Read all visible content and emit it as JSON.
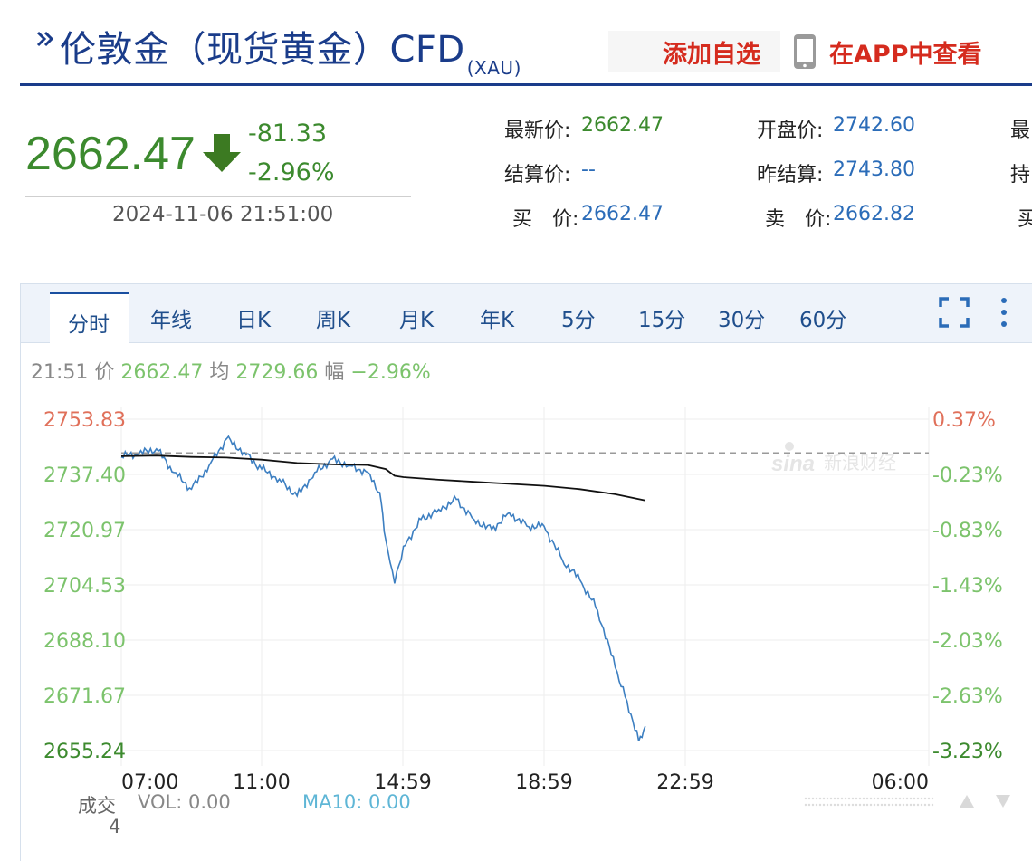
{
  "header": {
    "title": "伦敦金（现货黄金）CFD",
    "title_sub": "(XAU)",
    "add_fav": "添加自选",
    "app_link": "在APP中查看",
    "icon_title": "double-chevron-icon",
    "icon_phone": "phone-icon"
  },
  "quote": {
    "price": "2662.47",
    "change": "-81.33",
    "change_pct": "-2.96%",
    "datetime": "2024-11-06 21:51:00",
    "direction_icon": "down-arrow-icon",
    "fields": [
      {
        "label": "最新价:",
        "value": "2662.47",
        "color": "green"
      },
      {
        "label": "结算价:",
        "value": "--",
        "color": "blue"
      },
      {
        "label": "买　价:",
        "value": "2662.47",
        "color": "blue"
      },
      {
        "label": "开盘价:",
        "value": "2742.60",
        "color": "blue"
      },
      {
        "label": "昨结算:",
        "value": "2743.80",
        "color": "blue"
      },
      {
        "label": "卖　价:",
        "value": "2662.82",
        "color": "blue"
      },
      {
        "label": "最",
        "value": "",
        "color": "blue"
      },
      {
        "label": "持",
        "value": "",
        "color": "blue"
      },
      {
        "label": "买",
        "value": "",
        "color": "blue"
      }
    ]
  },
  "tabs": {
    "active": "分时",
    "items": [
      "年线",
      "日K",
      "周K",
      "月K",
      "年K",
      "5分",
      "15分",
      "30分",
      "60分"
    ],
    "fullscreen_icon": "fullscreen-icon",
    "more_icon": "more-vertical-icon"
  },
  "info": {
    "time": "21:51",
    "price_label": "价",
    "price": "2662.47",
    "avg_label": "均",
    "avg": "2729.66",
    "amp_label": "幅",
    "amp": "−2.96%"
  },
  "footer": {
    "volume_label": "成交",
    "vol": "VOL: 0.00",
    "ma10": "MA10: 0.00",
    "volume_axis": "4"
  },
  "colors": {
    "price_line": "#3d7fc1",
    "avg_line": "#111111",
    "up": "#e0705a",
    "down": "#7cc36c",
    "brand": "#1a3c8a",
    "alert": "#d52b1e"
  },
  "chart_data": {
    "type": "line",
    "x_ticks": [
      "07:00",
      "11:00",
      "14:59",
      "18:59",
      "22:59",
      "06:00"
    ],
    "y_ticks_left": [
      "2753.83",
      "2737.40",
      "2720.97",
      "2704.53",
      "2688.10",
      "2671.67",
      "2655.24"
    ],
    "y_ticks_right": [
      "0.37%",
      "-0.23%",
      "-0.83%",
      "-1.43%",
      "-2.03%",
      "-2.63%",
      "-3.23%"
    ],
    "ylim": [
      2655.24,
      2753.83
    ],
    "prev_settle": 2743.8,
    "grid": true,
    "series": [
      {
        "role": "price",
        "x": [
          "07:00",
          "07:30",
          "08:00",
          "08:30",
          "09:00",
          "09:30",
          "10:00",
          "10:30",
          "11:00",
          "11:30",
          "12:00",
          "12:30",
          "13:00",
          "13:30",
          "14:00",
          "14:20",
          "14:30",
          "14:45",
          "15:00",
          "15:30",
          "16:00",
          "16:30",
          "17:00",
          "17:30",
          "18:00",
          "18:30",
          "18:59",
          "19:30",
          "20:00",
          "20:30",
          "21:00",
          "21:20",
          "21:40",
          "21:51"
        ],
        "values": [
          2742.6,
          2743.5,
          2745.0,
          2738.0,
          2733.0,
          2740.0,
          2748.0,
          2744.0,
          2739.0,
          2736.0,
          2731.0,
          2738.0,
          2742.0,
          2740.0,
          2738.0,
          2732.0,
          2718.0,
          2705.0,
          2716.0,
          2724.0,
          2727.0,
          2730.0,
          2724.0,
          2721.0,
          2726.0,
          2722.0,
          2722.0,
          2712.0,
          2706.0,
          2697.0,
          2680.0,
          2670.0,
          2658.0,
          2662.47
        ]
      },
      {
        "role": "average",
        "x": [
          "07:00",
          "08:00",
          "09:00",
          "10:00",
          "11:00",
          "12:00",
          "13:00",
          "14:00",
          "14:30",
          "14:45",
          "15:00",
          "16:00",
          "17:00",
          "18:00",
          "19:00",
          "20:00",
          "21:00",
          "21:51"
        ],
        "values": [
          2742.8,
          2743.0,
          2742.6,
          2742.4,
          2741.8,
          2740.8,
          2740.4,
          2740.2,
          2739.0,
          2737.0,
          2736.6,
          2735.8,
          2735.2,
          2734.6,
          2734.0,
          2733.0,
          2731.5,
          2729.66
        ]
      }
    ]
  }
}
